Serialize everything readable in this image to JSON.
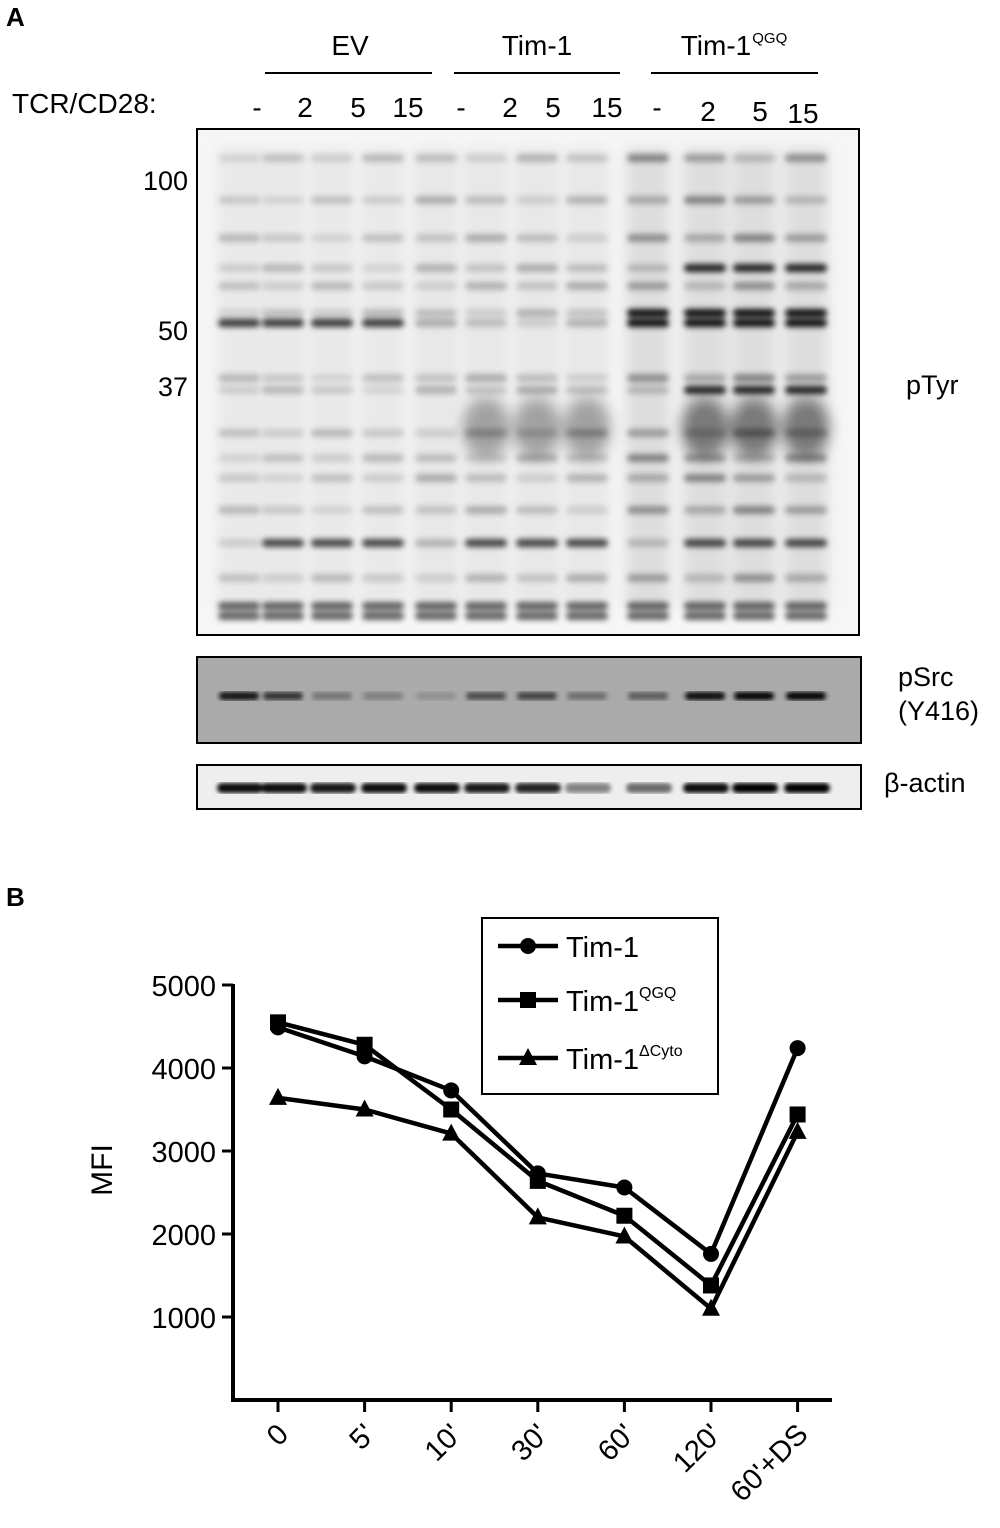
{
  "panel_a": {
    "letter": "A",
    "groups": [
      {
        "name": "EV",
        "sup": ""
      },
      {
        "name": "Tim-1",
        "sup": ""
      },
      {
        "name": "Tim-1",
        "sup": "QGQ"
      }
    ],
    "row_label": "TCR/CD28:",
    "lane_labels": [
      "-",
      "2",
      "5",
      "15",
      "-",
      "2",
      "5",
      "15",
      "-",
      "2",
      "5",
      "15"
    ],
    "mw_markers": [
      "100",
      "50",
      "37"
    ],
    "blots": {
      "ptyr": "pTyr",
      "psrc_line1": "pSrc",
      "psrc_line2": "(Y416)",
      "actin": "β-actin"
    }
  },
  "panel_b": {
    "letter": "B",
    "ylabel": "MFI",
    "legend": [
      {
        "name": "Tim-1",
        "sup": "",
        "marker": "circle"
      },
      {
        "name": "Tim-1",
        "sup": "QGQ",
        "marker": "square"
      },
      {
        "name": "Tim-1",
        "sup": "ΔCyto",
        "marker": "triangle"
      }
    ]
  },
  "chart_data": {
    "type": "line",
    "title": "",
    "xlabel": "",
    "ylabel": "MFI",
    "x": [
      "0",
      "5'",
      "10'",
      "30'",
      "60'",
      "120'",
      "60'+DS"
    ],
    "ylim": [
      0,
      5000
    ],
    "yticks": [
      1000,
      2000,
      3000,
      4000,
      5000
    ],
    "series": [
      {
        "name": "Tim-1",
        "marker": "circle",
        "values": [
          4490,
          4140,
          3730,
          2730,
          2560,
          1760,
          4240
        ]
      },
      {
        "name": "Tim-1QGQ",
        "marker": "square",
        "values": [
          4550,
          4280,
          3500,
          2640,
          2220,
          1380,
          3440
        ]
      },
      {
        "name": "Tim-1ΔCyto",
        "marker": "triangle",
        "values": [
          3640,
          3500,
          3210,
          2200,
          1970,
          1100,
          3230
        ]
      }
    ],
    "legend_position": "top-right",
    "grid": false
  }
}
